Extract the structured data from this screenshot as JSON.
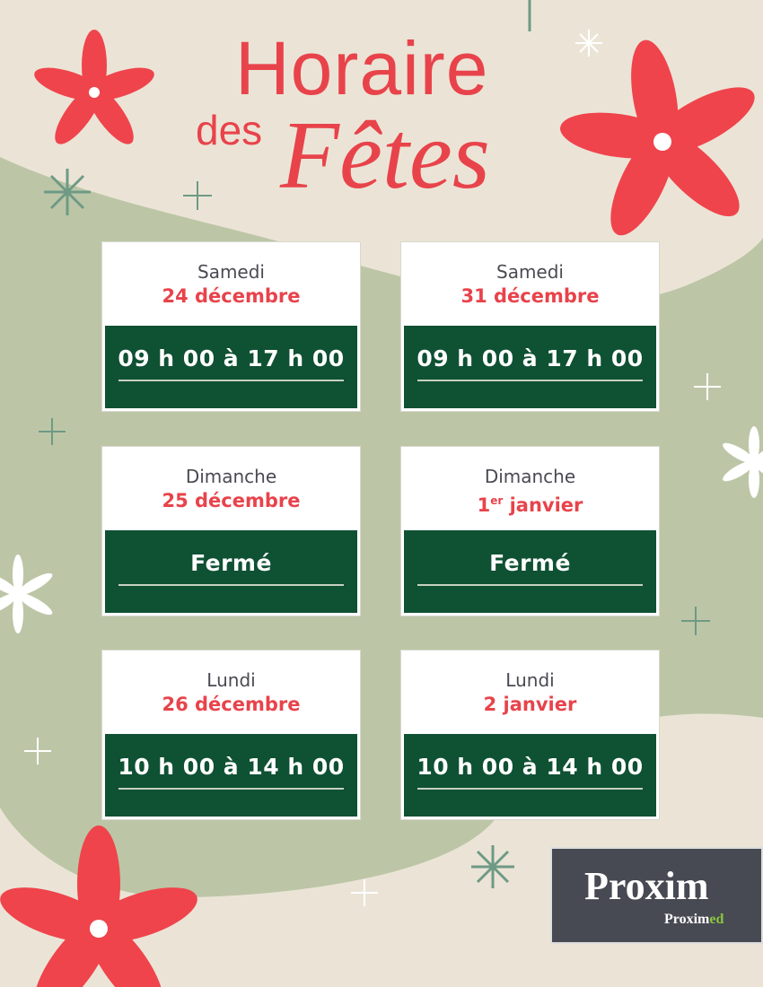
{
  "title": {
    "line1": "Horaire",
    "line2": "des",
    "line3": "Fêtes"
  },
  "colors": {
    "red": "#e8434b",
    "green": "#0f5133",
    "beige": "#ebe4d6",
    "sage": "#bcc6a6"
  },
  "cards": [
    {
      "day": "Samedi",
      "date": "24 décembre",
      "hours": "09 h 00 à 17 h 00"
    },
    {
      "day": "Samedi",
      "date": "31 décembre",
      "hours": "09 h 00 à 17 h 00"
    },
    {
      "day": "Dimanche",
      "date": "25 décembre",
      "hours": "Fermé"
    },
    {
      "day": "Dimanche",
      "date_num": "1",
      "date_sup": "er",
      "date_rest": " janvier",
      "hours": "Fermé"
    },
    {
      "day": "Lundi",
      "date": "26 décembre",
      "hours": "10 h 00 à 14 h 00"
    },
    {
      "day": "Lundi",
      "date": "2 janvier",
      "hours": "10 h 00 à 14 h 00"
    }
  ],
  "logo": {
    "brand": "Proxim",
    "sub": "Proximed",
    "sub_a": "Proxim",
    "sub_b": "ed"
  }
}
